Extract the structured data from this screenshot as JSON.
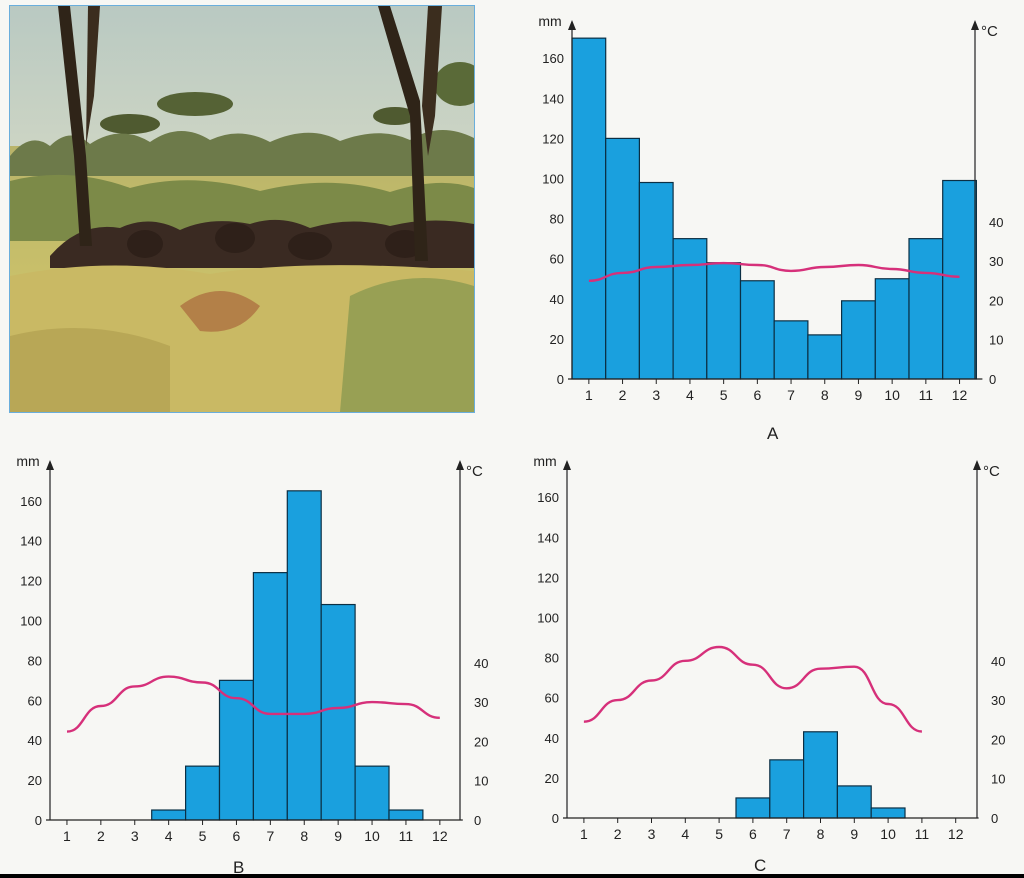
{
  "photo": {
    "subject": "savanna-photo",
    "colors": {
      "sky": "#b9c9c2",
      "grass": "#c9c06a",
      "trees": "#3b3020"
    }
  },
  "colors": {
    "bar": "#1aa0de",
    "bar_edge": "#0b2f44",
    "line": "#d6307a",
    "axis": "#222222"
  },
  "chart_data": [
    {
      "type": "bar",
      "caption": "A",
      "categories": [
        "1",
        "2",
        "3",
        "4",
        "5",
        "6",
        "7",
        "8",
        "9",
        "10",
        "11",
        "12"
      ],
      "series": [
        {
          "values": [
            170,
            120,
            98,
            70,
            58,
            49,
            29,
            22,
            39,
            50,
            70,
            99
          ]
        },
        {
          "type": "line",
          "axis": "right",
          "values": [
            25,
            27,
            28.5,
            29,
            29.5,
            29,
            27.5,
            28.5,
            29,
            28,
            27,
            26
          ]
        }
      ],
      "ylabel": "mm",
      "y2label": "°C",
      "ylim": [
        0,
        170
      ],
      "yticks": [
        0,
        20,
        40,
        60,
        80,
        100,
        120,
        140,
        160
      ],
      "y2ticks": [
        0,
        10,
        20,
        30,
        40
      ]
    },
    {
      "type": "bar",
      "caption": "B",
      "categories": [
        "1",
        "2",
        "3",
        "4",
        "5",
        "6",
        "7",
        "8",
        "9",
        "10",
        "11",
        "12"
      ],
      "series": [
        {
          "values": [
            0,
            0,
            0,
            5,
            27,
            70,
            124,
            165,
            108,
            27,
            5,
            0
          ]
        },
        {
          "type": "line",
          "axis": "right",
          "values": [
            22.5,
            29,
            34,
            36.5,
            35,
            31,
            27,
            27,
            28.5,
            30,
            29.5,
            26
          ]
        }
      ],
      "ylabel": "mm",
      "y2label": "°C",
      "ylim": [
        0,
        170
      ],
      "yticks": [
        0,
        20,
        40,
        60,
        80,
        100,
        120,
        140,
        160
      ],
      "y2ticks": [
        0,
        10,
        20,
        30,
        40
      ]
    },
    {
      "type": "bar",
      "caption": "C",
      "categories": [
        "1",
        "2",
        "3",
        "4",
        "5",
        "6",
        "7",
        "8",
        "9",
        "10",
        "11",
        "12"
      ],
      "series": [
        {
          "values": [
            0,
            0,
            0,
            0,
            0,
            10,
            29,
            43,
            16,
            5,
            0,
            0
          ]
        },
        {
          "type": "line",
          "axis": "right",
          "values": [
            24.5,
            30,
            35,
            40,
            43.5,
            39,
            33,
            38,
            38.5,
            29,
            22,
            null
          ]
        }
      ],
      "ylabel": "mm",
      "y2label": "°C",
      "ylim": [
        0,
        170
      ],
      "yticks": [
        0,
        20,
        40,
        60,
        80,
        100,
        120,
        140,
        160
      ],
      "y2ticks": [
        0,
        10,
        20,
        30,
        40
      ]
    }
  ]
}
